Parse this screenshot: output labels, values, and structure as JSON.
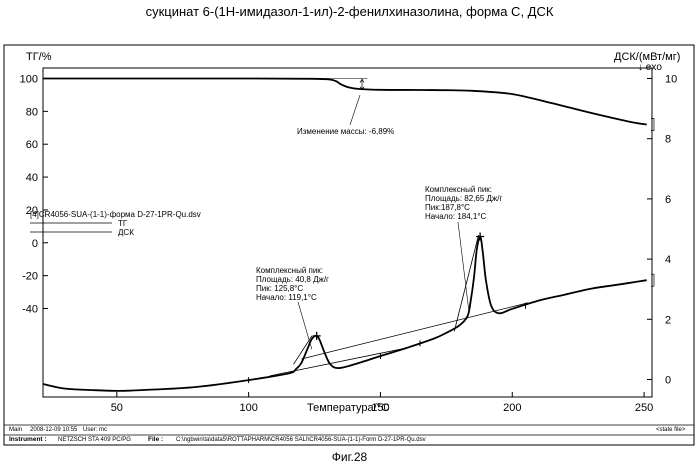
{
  "title": "сукцинат 6-(1Н-имидазол-1-ил)-2-фенилхиназолина, форма С, ДСК",
  "figure_label": "Фиг.28",
  "footer": {
    "main_label": "Main",
    "datetime": "2008-12-09 10:55",
    "user": "User: mc",
    "state_file": "<state file>",
    "instrument_label": "Instrument :",
    "instrument": "NETZSCH STA 409 PC/PG",
    "file_label": "File :",
    "file_path": "C:\\ngbwin\\ta\\data5\\ROTTAPHARM\\CR4056 SALI\\CR4056-SUA-(1-1)-Form D-27-1PR-Qu.dsv"
  },
  "legend": {
    "file": "[4]CR4056-SUA-(1-1)-форма D-27-1PR-Qu.dsv",
    "tg": "ТГ",
    "dsc": "ДСК"
  },
  "annotations": {
    "mass_change": "Изменение массы: -6,89%",
    "peak1": [
      "Комплексный пик:",
      "Площадь: 40,8 Дж/г",
      "Пик: 125,8°C",
      "Начало: 119,1°C"
    ],
    "peak2": [
      "Комплексный пик:",
      "Площадь: 82,65 Дж/г",
      "Пик:187,8°C",
      "Начало: 184,1°C"
    ]
  },
  "chart_data": {
    "type": "line",
    "xlabel": "Температура/°C",
    "ylabel_left": "ТГ/%",
    "ylabel_right": "ДСК/(мВт/мг)",
    "right_arrow_label": "↓ exo",
    "xlim": [
      22,
      253
    ],
    "x_ticks": [
      50,
      100,
      150,
      200,
      250
    ],
    "ylim_left": [
      -42,
      103
    ],
    "y_ticks_left": [
      100,
      80,
      60,
      40,
      20,
      0,
      -20,
      -40
    ],
    "ylim_right": [
      -0.5,
      10.3
    ],
    "y_ticks_right": [
      10,
      8,
      6,
      4,
      2,
      0
    ],
    "series": [
      {
        "name": "ТГ",
        "axis": "left",
        "x": [
          22,
          60,
          100,
          125,
          132,
          135,
          138,
          142,
          150,
          165,
          175,
          185,
          200,
          215,
          230,
          245,
          251
        ],
        "y": [
          100,
          100,
          100,
          99.8,
          99.0,
          96.5,
          94.6,
          93.6,
          93.1,
          93.0,
          92.9,
          92.5,
          90.5,
          85,
          79,
          73.5,
          72
        ]
      },
      {
        "name": "ДСК",
        "axis": "right",
        "x": [
          22,
          30,
          40,
          50,
          60,
          80,
          100,
          115,
          118,
          120,
          122,
          124,
          125.8,
          127,
          129,
          131,
          134,
          140,
          150,
          160,
          170,
          175,
          180,
          183,
          184.1,
          185.5,
          186.5,
          187.8,
          188.8,
          190,
          192,
          195,
          200,
          210,
          220,
          230,
          240,
          251
        ],
        "y": [
          -0.15,
          -0.3,
          -0.35,
          -0.38,
          -0.35,
          -0.25,
          -0.02,
          0.2,
          0.35,
          0.55,
          0.95,
          1.35,
          1.45,
          1.3,
          0.85,
          0.5,
          0.38,
          0.5,
          0.78,
          1.05,
          1.35,
          1.55,
          1.8,
          2.1,
          2.55,
          3.4,
          4.3,
          4.75,
          4.25,
          3.3,
          2.45,
          2.2,
          2.35,
          2.62,
          2.82,
          3.02,
          3.15,
          3.3
        ]
      }
    ]
  }
}
